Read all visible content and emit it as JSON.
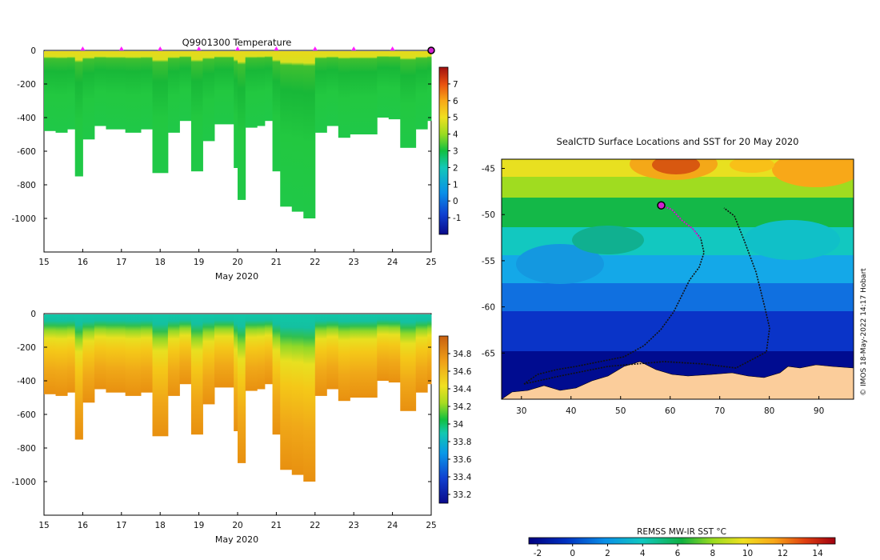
{
  "chart_data": [
    {
      "type": "heatmap",
      "title": "Q9901300  Temperature",
      "xlabel": "May 2020",
      "ylabel": "",
      "x_ticks": [
        "15",
        "16",
        "17",
        "18",
        "19",
        "20",
        "21",
        "22",
        "23",
        "24",
        "25"
      ],
      "y_ticks": [
        "0",
        "-200",
        "-400",
        "-600",
        "-800",
        "-1000"
      ],
      "xlim": [
        15,
        25
      ],
      "ylim": [
        -1200,
        0
      ],
      "colorbar": {
        "ticks": [
          "7",
          "6",
          "5",
          "4",
          "3",
          "2",
          "1",
          "0",
          "-1"
        ],
        "range": [
          -2,
          8
        ]
      },
      "surface_markers_day": [
        16,
        17,
        18,
        19,
        20,
        21,
        22,
        23,
        24
      ],
      "latest_marker_day": 25,
      "profiles": [
        {
          "day": 15.0,
          "depth": 480
        },
        {
          "day": 15.3,
          "depth": 490
        },
        {
          "day": 15.6,
          "depth": 470
        },
        {
          "day": 15.8,
          "depth": 750
        },
        {
          "day": 16.0,
          "depth": 530
        },
        {
          "day": 16.3,
          "depth": 450
        },
        {
          "day": 16.6,
          "depth": 470
        },
        {
          "day": 17.1,
          "depth": 490
        },
        {
          "day": 17.5,
          "depth": 470
        },
        {
          "day": 17.8,
          "depth": 730
        },
        {
          "day": 18.2,
          "depth": 490
        },
        {
          "day": 18.5,
          "depth": 420
        },
        {
          "day": 18.8,
          "depth": 720
        },
        {
          "day": 19.1,
          "depth": 540
        },
        {
          "day": 19.4,
          "depth": 440
        },
        {
          "day": 19.9,
          "depth": 700
        },
        {
          "day": 20.0,
          "depth": 890
        },
        {
          "day": 20.2,
          "depth": 460
        },
        {
          "day": 20.5,
          "depth": 450
        },
        {
          "day": 20.7,
          "depth": 420
        },
        {
          "day": 20.9,
          "depth": 720
        },
        {
          "day": 21.1,
          "depth": 930
        },
        {
          "day": 21.4,
          "depth": 960
        },
        {
          "day": 21.7,
          "depth": 1000
        },
        {
          "day": 22.0,
          "depth": 490
        },
        {
          "day": 22.3,
          "depth": 450
        },
        {
          "day": 22.6,
          "depth": 520
        },
        {
          "day": 22.9,
          "depth": 500
        },
        {
          "day": 23.2,
          "depth": 500
        },
        {
          "day": 23.6,
          "depth": 400
        },
        {
          "day": 23.9,
          "depth": 410
        },
        {
          "day": 24.2,
          "depth": 580
        },
        {
          "day": 24.6,
          "depth": 470
        },
        {
          "day": 24.9,
          "depth": 420
        }
      ]
    },
    {
      "type": "heatmap",
      "title": "",
      "xlabel": "May 2020",
      "ylabel": "",
      "x_ticks": [
        "15",
        "16",
        "17",
        "18",
        "19",
        "20",
        "21",
        "22",
        "23",
        "24",
        "25"
      ],
      "y_ticks": [
        "0",
        "-200",
        "-400",
        "-600",
        "-800",
        "-1000"
      ],
      "xlim": [
        15,
        25
      ],
      "ylim": [
        -1200,
        0
      ],
      "colorbar": {
        "ticks": [
          "34.8",
          "34.6",
          "34.4",
          "34.2",
          "34",
          "33.8",
          "33.6",
          "33.4",
          "33.2"
        ],
        "range": [
          33.1,
          35.0
        ]
      }
    },
    {
      "type": "map",
      "title": "SealCTD Surface Locations and SST for 20 May 2020",
      "x_ticks": [
        "30",
        "40",
        "50",
        "60",
        "70",
        "80",
        "90"
      ],
      "y_ticks": [
        "-45",
        "-50",
        "-55",
        "-60",
        "-65"
      ],
      "xlim": [
        26,
        97
      ],
      "ylim": [
        -70,
        -44
      ],
      "colorbar": {
        "label": "REMSS MW-IR SST °C",
        "ticks": [
          "-2",
          "0",
          "2",
          "4",
          "6",
          "8",
          "10",
          "12",
          "14"
        ],
        "range": [
          -2.5,
          15
        ]
      },
      "latest_position": {
        "lon": 58.2,
        "lat": -49.0
      },
      "credit": "© IMOS 18-May-2022 14:17 Hobart"
    }
  ]
}
